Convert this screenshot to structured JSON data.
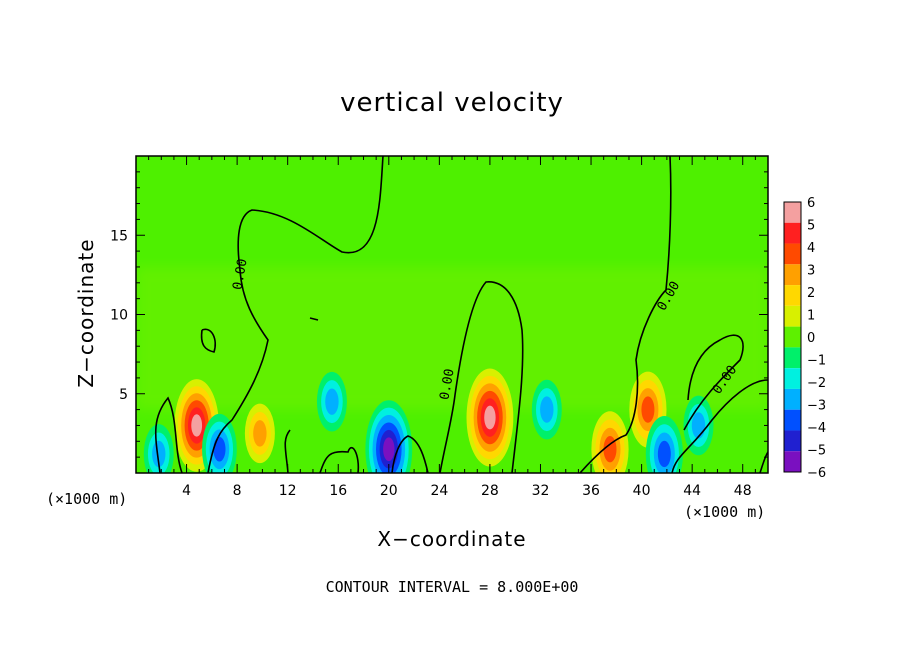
{
  "chart_data": {
    "type": "heatmap",
    "title": "vertical velocity",
    "xlabel": "X−coordinate",
    "ylabel": "Z−coordinate",
    "x_unit_label": "(×1000 m)",
    "xlim": [
      0,
      50
    ],
    "ylim": [
      0,
      20
    ],
    "x_ticks": [
      4,
      8,
      12,
      16,
      20,
      24,
      28,
      32,
      36,
      40,
      44,
      48
    ],
    "y_ticks": [
      5,
      10,
      15
    ],
    "colorbar": {
      "levels": [
        6,
        5,
        4,
        3,
        2,
        1,
        0,
        -1,
        -2,
        -3,
        -4,
        -5,
        -6
      ],
      "tick_labels": [
        "6",
        "5",
        "4",
        "3",
        "2",
        "1",
        "0",
        "−1",
        "−2",
        "−3",
        "−4",
        "−5",
        "−6"
      ],
      "colors": [
        "#f4a0a0",
        "#ff2020",
        "#ff4a00",
        "#ffa000",
        "#ffd800",
        "#d8f000",
        "#5ef000",
        "#00f06a",
        "#00f0e0",
        "#00b0ff",
        "#0050ff",
        "#2020d0",
        "#7a10c0"
      ]
    },
    "background_color": "#4ef000",
    "contour_label": "0.00",
    "contour_interval_text": "CONTOUR INTERVAL = 8.000E+00",
    "features": [
      {
        "x": 4.8,
        "z": 3.0,
        "value": 5.5
      },
      {
        "x": 1.8,
        "z": 1.2,
        "value": -2.5
      },
      {
        "x": 6.6,
        "z": 1.5,
        "value": -3.5
      },
      {
        "x": 9.8,
        "z": 2.5,
        "value": 2.5
      },
      {
        "x": 15.5,
        "z": 4.5,
        "value": -2.5
      },
      {
        "x": 20.0,
        "z": 1.5,
        "value": -6.0
      },
      {
        "x": 28.0,
        "z": 3.5,
        "value": 6.0
      },
      {
        "x": 32.5,
        "z": 4.0,
        "value": -2.5
      },
      {
        "x": 37.5,
        "z": 1.5,
        "value": 4.0
      },
      {
        "x": 40.5,
        "z": 4.0,
        "value": 4.0
      },
      {
        "x": 41.8,
        "z": 1.2,
        "value": -4.0
      },
      {
        "x": 44.5,
        "z": 3.0,
        "value": -2.5
      }
    ]
  }
}
